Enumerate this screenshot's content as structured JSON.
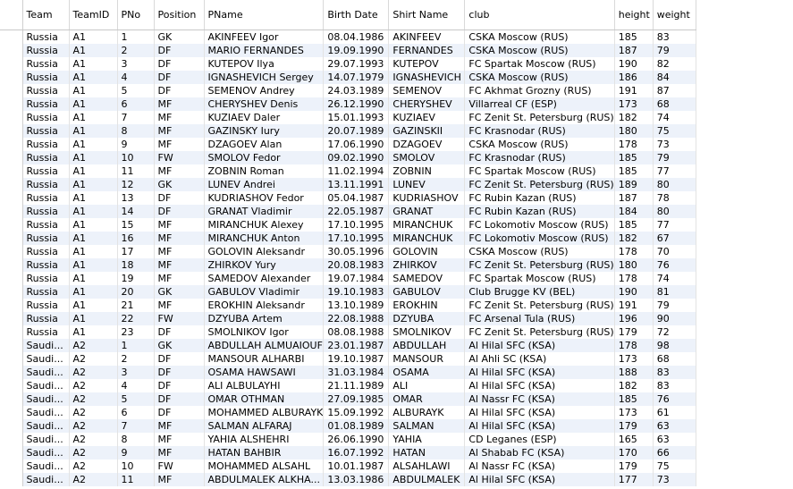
{
  "columns": [
    "Team",
    "TeamID",
    "PNo",
    "Position",
    "PName",
    "Birth Date",
    "Shirt Name",
    "club",
    "height",
    "weight"
  ],
  "rows": [
    [
      "Russia",
      "A1",
      "1",
      "GK",
      "AKINFEEV Igor",
      "08.04.1986",
      "AKINFEEV",
      "CSKA Moscow (RUS)",
      "185",
      "83"
    ],
    [
      "Russia",
      "A1",
      "2",
      "DF",
      "MARIO FERNANDES",
      "19.09.1990",
      "FERNANDES",
      "CSKA Moscow (RUS)",
      "187",
      "79"
    ],
    [
      "Russia",
      "A1",
      "3",
      "DF",
      "KUTEPOV Ilya",
      "29.07.1993",
      "KUTEPOV",
      "FC Spartak Moscow (RUS)",
      "190",
      "82"
    ],
    [
      "Russia",
      "A1",
      "4",
      "DF",
      "IGNASHEVICH Sergey",
      "14.07.1979",
      "IGNASHEVICH",
      "CSKA Moscow (RUS)",
      "186",
      "84"
    ],
    [
      "Russia",
      "A1",
      "5",
      "DF",
      "SEMENOV Andrey",
      "24.03.1989",
      "SEMENOV",
      "FC Akhmat Grozny (RUS)",
      "191",
      "87"
    ],
    [
      "Russia",
      "A1",
      "6",
      "MF",
      "CHERYSHEV Denis",
      "26.12.1990",
      "CHERYSHEV",
      "Villarreal CF (ESP)",
      "173",
      "68"
    ],
    [
      "Russia",
      "A1",
      "7",
      "MF",
      "KUZIAEV Daler",
      "15.01.1993",
      "KUZIAEV",
      "FC Zenit St. Petersburg (RUS)",
      "182",
      "74"
    ],
    [
      "Russia",
      "A1",
      "8",
      "MF",
      "GAZINSKY Iury",
      "20.07.1989",
      "GAZINSKII",
      "FC Krasnodar (RUS)",
      "180",
      "75"
    ],
    [
      "Russia",
      "A1",
      "9",
      "MF",
      "DZAGOEV Alan",
      "17.06.1990",
      "DZAGOEV",
      "CSKA Moscow (RUS)",
      "178",
      "73"
    ],
    [
      "Russia",
      "A1",
      "10",
      "FW",
      "SMOLOV Fedor",
      "09.02.1990",
      "SMOLOV",
      "FC Krasnodar (RUS)",
      "185",
      "79"
    ],
    [
      "Russia",
      "A1",
      "11",
      "MF",
      "ZOBNIN Roman",
      "11.02.1994",
      "ZOBNIN",
      "FC Spartak Moscow (RUS)",
      "185",
      "77"
    ],
    [
      "Russia",
      "A1",
      "12",
      "GK",
      "LUNEV Andrei",
      "13.11.1991",
      "LUNEV",
      "FC Zenit St. Petersburg (RUS)",
      "189",
      "80"
    ],
    [
      "Russia",
      "A1",
      "13",
      "DF",
      "KUDRIASHOV Fedor",
      "05.04.1987",
      "KUDRIASHOV",
      "FC Rubin Kazan (RUS)",
      "187",
      "78"
    ],
    [
      "Russia",
      "A1",
      "14",
      "DF",
      "GRANAT Vladimir",
      "22.05.1987",
      "GRANAT",
      "FC Rubin Kazan (RUS)",
      "184",
      "80"
    ],
    [
      "Russia",
      "A1",
      "15",
      "MF",
      "MIRANCHUK Alexey",
      "17.10.1995",
      "MIRANCHUK",
      "FC Lokomotiv Moscow (RUS)",
      "185",
      "77"
    ],
    [
      "Russia",
      "A1",
      "16",
      "MF",
      "MIRANCHUK Anton",
      "17.10.1995",
      "MIRANCHUK",
      "FC Lokomotiv Moscow (RUS)",
      "182",
      "67"
    ],
    [
      "Russia",
      "A1",
      "17",
      "MF",
      "GOLOVIN Aleksandr",
      "30.05.1996",
      "GOLOVIN",
      "CSKA Moscow (RUS)",
      "178",
      "70"
    ],
    [
      "Russia",
      "A1",
      "18",
      "MF",
      "ZHIRKOV Yury",
      "20.08.1983",
      "ZHIRKOV",
      "FC Zenit St. Petersburg (RUS)",
      "180",
      "76"
    ],
    [
      "Russia",
      "A1",
      "19",
      "MF",
      "SAMEDOV Alexander",
      "19.07.1984",
      "SAMEDOV",
      "FC Spartak Moscow (RUS)",
      "178",
      "74"
    ],
    [
      "Russia",
      "A1",
      "20",
      "GK",
      "GABULOV Vladimir",
      "19.10.1983",
      "GABULOV",
      "Club Brugge KV (BEL)",
      "190",
      "81"
    ],
    [
      "Russia",
      "A1",
      "21",
      "MF",
      "EROKHIN Aleksandr",
      "13.10.1989",
      "EROKHIN",
      "FC Zenit St. Petersburg (RUS)",
      "191",
      "79"
    ],
    [
      "Russia",
      "A1",
      "22",
      "FW",
      "DZYUBA Artem",
      "22.08.1988",
      "DZYUBA",
      "FC Arsenal Tula (RUS)",
      "196",
      "90"
    ],
    [
      "Russia",
      "A1",
      "23",
      "DF",
      "SMOLNIKOV Igor",
      "08.08.1988",
      "SMOLNIKOV",
      "FC Zenit St. Petersburg (RUS)",
      "179",
      "72"
    ],
    [
      "Saudi...",
      "A2",
      "1",
      "GK",
      "ABDULLAH ALMUAIOUF",
      "23.01.1987",
      "ABDULLAH",
      "Al Hilal SFC (KSA)",
      "178",
      "98"
    ],
    [
      "Saudi...",
      "A2",
      "2",
      "DF",
      "MANSOUR ALHARBI",
      "19.10.1987",
      "MANSOUR",
      "Al Ahli SC (KSA)",
      "173",
      "68"
    ],
    [
      "Saudi...",
      "A2",
      "3",
      "DF",
      "OSAMA HAWSAWI",
      "31.03.1984",
      "OSAMA",
      "Al Hilal SFC (KSA)",
      "188",
      "83"
    ],
    [
      "Saudi...",
      "A2",
      "4",
      "DF",
      "ALI ALBULAYHI",
      "21.11.1989",
      "ALI",
      "Al Hilal SFC (KSA)",
      "182",
      "83"
    ],
    [
      "Saudi...",
      "A2",
      "5",
      "DF",
      "OMAR OTHMAN",
      "27.09.1985",
      "OMAR",
      "Al Nassr FC (KSA)",
      "185",
      "76"
    ],
    [
      "Saudi...",
      "A2",
      "6",
      "DF",
      "MOHAMMED ALBURAYK",
      "15.09.1992",
      "ALBURAYK",
      "Al Hilal SFC (KSA)",
      "173",
      "61"
    ],
    [
      "Saudi...",
      "A2",
      "7",
      "MF",
      "SALMAN ALFARAJ",
      "01.08.1989",
      "SALMAN",
      "Al Hilal SFC (KSA)",
      "179",
      "63"
    ],
    [
      "Saudi...",
      "A2",
      "8",
      "MF",
      "YAHIA ALSHEHRI",
      "26.06.1990",
      "YAHIA",
      "CD Leganes (ESP)",
      "165",
      "63"
    ],
    [
      "Saudi...",
      "A2",
      "9",
      "MF",
      "HATAN BAHBIR",
      "16.07.1992",
      "HATAN",
      "Al Shabab FC (KSA)",
      "170",
      "66"
    ],
    [
      "Saudi...",
      "A2",
      "10",
      "FW",
      "MOHAMMED ALSAHL",
      "10.01.1987",
      "ALSAHLAWI",
      "Al Nassr FC (KSA)",
      "179",
      "75"
    ],
    [
      "Saudi...",
      "A2",
      "11",
      "MF",
      "ABDULMALEK ALKHA...",
      "13.03.1986",
      "ABDULMALEK",
      "Al Hilal SFC (KSA)",
      "177",
      "73"
    ]
  ]
}
